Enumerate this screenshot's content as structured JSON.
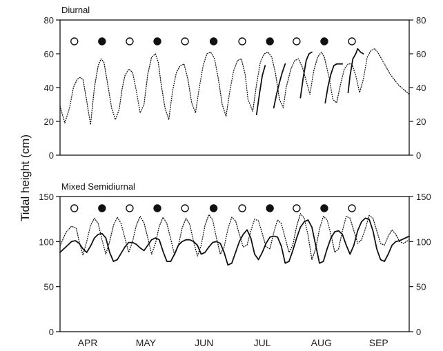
{
  "figure": {
    "ylabel": "Tidal height (cm)",
    "months": [
      "APR",
      "MAY",
      "JUN",
      "JUL",
      "AUG",
      "SEP"
    ]
  },
  "chart_data": [
    {
      "type": "line",
      "title": "Diurnal",
      "ylabel": "Tidal height (cm)",
      "ylim": [
        0,
        80
      ],
      "yticks": [
        0,
        20,
        40,
        60,
        80
      ],
      "xlim": [
        0,
        183
      ],
      "x_unit": "days from Apr 1",
      "moon_phases": [
        {
          "day": 7.5,
          "phase": "full"
        },
        {
          "day": 22,
          "phase": "new"
        },
        {
          "day": 36.5,
          "phase": "full"
        },
        {
          "day": 51,
          "phase": "new"
        },
        {
          "day": 65.5,
          "phase": "full"
        },
        {
          "day": 80.5,
          "phase": "new"
        },
        {
          "day": 95.5,
          "phase": "full"
        },
        {
          "day": 110,
          "phase": "new"
        },
        {
          "day": 124,
          "phase": "full"
        },
        {
          "day": 138.5,
          "phase": "new"
        },
        {
          "day": 153,
          "phase": "full"
        }
      ],
      "series": [
        {
          "style": "dotted",
          "x": [
            0,
            2.5,
            5,
            7,
            9,
            10.5,
            12,
            14,
            16,
            18,
            20,
            21.5,
            23,
            25,
            27,
            29,
            31,
            32.5,
            34,
            36,
            38,
            40,
            42,
            44,
            46,
            48,
            50,
            51.5,
            53,
            55,
            57,
            59,
            61,
            63,
            65,
            67,
            69,
            71,
            73,
            75,
            77,
            79,
            81,
            83,
            85,
            87,
            89,
            91,
            93,
            95,
            97,
            98.5,
            101,
            103,
            105,
            107,
            109,
            111,
            113,
            115,
            117,
            118.5,
            121,
            123,
            125,
            127,
            129,
            131,
            133,
            135,
            137,
            138.5,
            141,
            143,
            145,
            147,
            149,
            151,
            153,
            155,
            157,
            159,
            161,
            163,
            165,
            167,
            169,
            171,
            173,
            175,
            177,
            179,
            181,
            183
          ],
          "y": [
            29,
            19,
            28,
            40,
            45,
            46,
            45,
            32,
            18,
            40,
            53,
            57,
            55,
            42,
            28,
            21,
            27,
            39,
            47,
            51,
            49,
            38,
            25,
            30,
            48,
            58,
            60,
            55,
            42,
            28,
            21,
            38,
            49,
            53,
            54,
            45,
            31,
            25,
            40,
            53,
            60,
            61,
            57,
            45,
            30,
            23,
            38,
            50,
            56,
            57,
            48,
            33,
            26,
            42,
            55,
            60,
            61,
            58,
            48,
            33,
            28,
            40,
            51,
            56,
            57,
            52,
            44,
            36,
            50,
            58,
            61,
            58,
            46,
            33,
            31,
            42,
            51,
            54,
            54,
            47,
            37,
            45,
            58,
            62,
            63,
            60,
            56,
            52,
            48,
            45,
            42,
            40,
            38,
            36
          ]
        },
        {
          "style": "solid",
          "segments": [
            {
              "x": [
                103,
                104.5,
                106,
                107.5
              ],
              "y": [
                24,
                36,
                47,
                53
              ]
            },
            {
              "x": [
                112,
                113.5,
                115,
                116.5,
                118
              ],
              "y": [
                28,
                36,
                43,
                49,
                54
              ]
            },
            {
              "x": [
                126,
                127.5,
                129,
                130.5,
                132
              ],
              "y": [
                34,
                46,
                56,
                60,
                61
              ]
            },
            {
              "x": [
                139,
                140.5,
                142,
                143.5,
                145,
                146.5,
                148
              ],
              "y": [
                31,
                41,
                48,
                53,
                54,
                54,
                54
              ]
            },
            {
              "x": [
                151,
                152,
                153.5,
                155,
                156,
                157.5,
                159
              ],
              "y": [
                37,
                47,
                57,
                60,
                63,
                61,
                60
              ]
            }
          ]
        }
      ]
    },
    {
      "type": "line",
      "title": "Mixed Semidiurnal",
      "ylabel": "Tidal height (cm)",
      "ylim": [
        0,
        150
      ],
      "yticks": [
        0,
        50,
        100,
        150
      ],
      "xlim": [
        0,
        183
      ],
      "x_unit": "days from Apr 1",
      "moon_phases": [
        {
          "day": 7.5,
          "phase": "full"
        },
        {
          "day": 22,
          "phase": "new"
        },
        {
          "day": 36.5,
          "phase": "full"
        },
        {
          "day": 51,
          "phase": "new"
        },
        {
          "day": 65.5,
          "phase": "full"
        },
        {
          "day": 80.5,
          "phase": "new"
        },
        {
          "day": 95.5,
          "phase": "full"
        },
        {
          "day": 110,
          "phase": "new"
        },
        {
          "day": 124,
          "phase": "full"
        },
        {
          "day": 138.5,
          "phase": "new"
        },
        {
          "day": 153,
          "phase": "full"
        }
      ],
      "series": [
        {
          "style": "dotted",
          "x": [
            0,
            3,
            6,
            8.5,
            10,
            12,
            14,
            16,
            18,
            20,
            22,
            24,
            26,
            28,
            30,
            32,
            34,
            36,
            38,
            40,
            42,
            44,
            46,
            48,
            50,
            52,
            54,
            56,
            58,
            60,
            62,
            64,
            66,
            68,
            70,
            72,
            74,
            76,
            78,
            80,
            82,
            84,
            86,
            88,
            90,
            92,
            94,
            96,
            98,
            100,
            102,
            104,
            106,
            108,
            110,
            112,
            114,
            116,
            118,
            120,
            122,
            124,
            126,
            128,
            130,
            132,
            134,
            136,
            138,
            140,
            142,
            144,
            146,
            148,
            150,
            152,
            154,
            156,
            158,
            160,
            162,
            164,
            166,
            168,
            170,
            172,
            174,
            176,
            178,
            180,
            183
          ],
          "y": [
            95,
            110,
            117,
            115,
            100,
            85,
            100,
            118,
            126,
            120,
            102,
            86,
            100,
            118,
            127,
            120,
            104,
            88,
            100,
            118,
            128,
            121,
            104,
            86,
            98,
            117,
            127,
            120,
            103,
            85,
            95,
            115,
            126,
            119,
            100,
            84,
            96,
            118,
            130,
            124,
            104,
            86,
            94,
            114,
            127,
            123,
            108,
            94,
            96,
            112,
            125,
            123,
            109,
            94,
            92,
            110,
            124,
            120,
            104,
            88,
            96,
            117,
            131,
            126,
            107,
            80,
            92,
            114,
            128,
            124,
            108,
            88,
            92,
            112,
            128,
            126,
            112,
            98,
            102,
            114,
            129,
            126,
            112,
            98,
            96,
            106,
            113,
            108,
            100,
            98,
            102
          ]
        },
        {
          "style": "solid",
          "x": [
            0,
            2,
            4,
            6,
            8,
            10,
            12,
            14,
            16,
            18,
            20,
            22,
            24,
            26,
            28,
            30,
            32,
            34,
            36,
            38,
            40,
            42,
            44,
            46,
            48,
            50,
            52,
            54,
            56,
            58,
            60,
            62,
            64,
            66,
            68,
            70,
            72,
            74,
            76,
            78,
            80,
            82,
            84,
            86,
            88,
            90,
            92,
            94,
            96,
            98,
            100,
            102,
            104,
            106,
            108,
            110,
            112,
            114,
            116,
            118,
            120,
            122,
            124,
            126,
            128,
            130,
            132,
            134,
            136,
            138,
            140,
            142,
            144,
            146,
            148,
            150,
            152,
            154,
            156,
            158,
            160,
            162,
            164,
            166,
            168,
            170,
            172,
            174,
            176,
            178,
            180,
            183
          ],
          "y": [
            88,
            92,
            96,
            100,
            101,
            98,
            92,
            88,
            95,
            104,
            108,
            109,
            104,
            88,
            78,
            80,
            87,
            94,
            99,
            99,
            97,
            93,
            90,
            96,
            102,
            104,
            102,
            89,
            78,
            78,
            86,
            96,
            100,
            102,
            102,
            100,
            96,
            86,
            88,
            94,
            99,
            100,
            98,
            88,
            74,
            76,
            88,
            100,
            108,
            113,
            104,
            86,
            80,
            88,
            98,
            105,
            106,
            105,
            95,
            76,
            78,
            90,
            104,
            116,
            122,
            124,
            116,
            96,
            76,
            78,
            92,
            104,
            111,
            112,
            108,
            96,
            86,
            96,
            112,
            122,
            126,
            125,
            112,
            92,
            80,
            78,
            86,
            96,
            100,
            101,
            103,
            106
          ]
        }
      ]
    }
  ]
}
